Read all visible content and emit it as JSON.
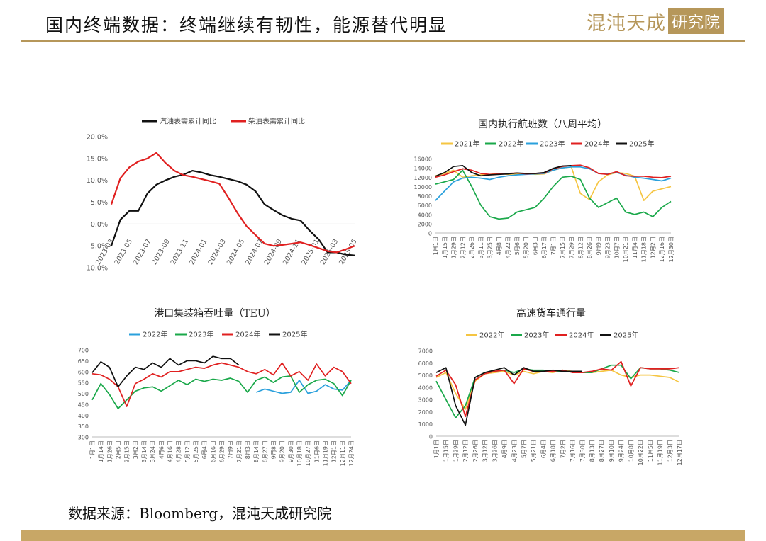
{
  "header": {
    "title": "国内终端数据：终端继续有韧性，能源替代明显",
    "brand_main": "混沌天成",
    "brand_box": "研究院"
  },
  "footer": {
    "source": "数据来源：Bloomberg，混沌天成研究院"
  },
  "colors": {
    "gold": "#b6975a",
    "black": "#111111",
    "red": "#e02020",
    "green": "#1aa84a",
    "blue": "#2aa0dc",
    "yellow": "#f5c542"
  },
  "chart_data": [
    {
      "type": "line",
      "title": "",
      "categories": [
        "2023-03",
        "2023-04",
        "2023-05",
        "2023-06",
        "2023-07",
        "2023-08",
        "2023-09",
        "2023-10",
        "2023-11",
        "2023-12",
        "2024-01",
        "2024-02",
        "2024-03",
        "2024-04",
        "2024-05",
        "2024-06",
        "2024-07",
        "2024-08",
        "2024-09",
        "2024-10",
        "2024-11",
        "2024-12",
        "2025-01",
        "2025-02",
        "2025-03",
        "2025-04",
        "2025-05",
        "2025-06"
      ],
      "x_tick_labels": [
        "2023-03",
        "2023-05",
        "2023-07",
        "2023-09",
        "2023-11",
        "2024-01",
        "2024-03",
        "2024-05",
        "2024-07",
        "2024-09",
        "2024-11",
        "2025-01",
        "2025-03",
        "2025-05"
      ],
      "ylim": [
        -10,
        20
      ],
      "y_ticks": [
        "20.0%",
        "15.0%",
        "10.0%",
        "5.0%",
        "0.0%",
        "-5.0%",
        "-10.0%"
      ],
      "series": [
        {
          "name": "汽油表需累计同比",
          "color": "#111111",
          "values": [
            -5.0,
            1.0,
            3.0,
            3.0,
            7.0,
            9.0,
            10.0,
            10.8,
            11.3,
            12.2,
            11.8,
            11.2,
            10.8,
            10.3,
            9.8,
            9.0,
            7.5,
            4.5,
            3.2,
            2.0,
            1.2,
            0.8,
            -1.5,
            -3.5,
            -6.5,
            -6.5,
            -7.0,
            -7.2
          ]
        },
        {
          "name": "柴油表需累计同比",
          "color": "#e02020",
          "values": [
            4.5,
            10.5,
            13.0,
            14.3,
            15.0,
            16.3,
            14.0,
            12.2,
            11.2,
            10.8,
            10.3,
            9.8,
            9.2,
            6.0,
            2.5,
            -0.5,
            -2.5,
            -4.5,
            -5.0,
            -4.8,
            -4.5,
            -4.2,
            -4.8,
            -5.5,
            -6.2,
            -6.5,
            -5.8,
            -5.0
          ]
        }
      ]
    },
    {
      "type": "line",
      "title": "国内执行航班数（八周平均）",
      "ylim": [
        0,
        16000
      ],
      "y_ticks": [
        "16000",
        "14000",
        "12000",
        "10000",
        "8000",
        "6000",
        "4000",
        "2000",
        "0"
      ],
      "x_tick_labels": [
        "1月1日",
        "1月15日",
        "1月29日",
        "2月12日",
        "2月26日",
        "3月11日",
        "3月25日",
        "4月8日",
        "4月22日",
        "5月6日",
        "5月20日",
        "6月3日",
        "6月17日",
        "7月1日",
        "7月15日",
        "7月29日",
        "8月12日",
        "8月26日",
        "9月9日",
        "9月23日",
        "10月7日",
        "10月21日",
        "11月4日",
        "11月18日",
        "12月2日",
        "12月16日",
        "12月30日"
      ],
      "series": [
        {
          "name": "2021年",
          "color": "#f5c542",
          "values": [
            12300,
            12800,
            13500,
            12000,
            12300,
            12500,
            12600,
            12800,
            12600,
            12700,
            12800,
            12600,
            12700,
            13500,
            14000,
            14200,
            8500,
            7200,
            11000,
            12500,
            13000,
            12800,
            12200,
            7000,
            9000,
            9500,
            10000
          ]
        },
        {
          "name": "2022年",
          "color": "#1aa84a",
          "values": [
            10500,
            11000,
            11500,
            13500,
            10000,
            6000,
            3500,
            3000,
            3200,
            4500,
            5000,
            5500,
            7500,
            10000,
            12000,
            12200,
            11500,
            7500,
            5500,
            6500,
            7500,
            4500,
            4000,
            4500,
            3500,
            5500,
            6800
          ]
        },
        {
          "name": "2023年",
          "color": "#2aa0dc",
          "values": [
            7000,
            9000,
            11000,
            11800,
            12000,
            11800,
            11500,
            12000,
            12300,
            12500,
            12600,
            12700,
            12800,
            13500,
            14000,
            14200,
            14200,
            13800,
            12800,
            12700,
            13000,
            12400,
            12000,
            11800,
            11500,
            11200,
            11800
          ]
        },
        {
          "name": "2024年",
          "color": "#e02020",
          "values": [
            12000,
            12500,
            13200,
            13800,
            13500,
            12800,
            12600,
            12700,
            12800,
            12900,
            12700,
            12800,
            12900,
            13800,
            14300,
            14500,
            14600,
            14000,
            12800,
            12600,
            13200,
            12300,
            12200,
            12200,
            12000,
            11900,
            12200
          ]
        },
        {
          "name": "2025年",
          "color": "#111111",
          "values": [
            12200,
            13000,
            14300,
            14500,
            13000,
            12300,
            12500,
            12600,
            12700,
            12900,
            12800,
            12800,
            13000,
            13900,
            14400,
            14500
          ]
        }
      ]
    },
    {
      "type": "line",
      "title": "港口集装箱吞吐量（TEU）",
      "ylim": [
        300,
        700
      ],
      "y_ticks": [
        "700",
        "650",
        "600",
        "550",
        "500",
        "450",
        "400",
        "350",
        "300"
      ],
      "x_tick_labels": [
        "1月1日",
        "1月14日",
        "1月26日",
        "2月5日",
        "2月15日",
        "3月2日",
        "3月14日",
        "3月24日",
        "4月6日",
        "4月16日",
        "4月28日",
        "5月12日",
        "5月25日",
        "6月4日",
        "6月16日",
        "6月29日",
        "7月9日",
        "7月21日",
        "8月3日",
        "8月14日",
        "8月27日",
        "9月8日",
        "9月20日",
        "9月30日",
        "10月18日",
        "10月27日",
        "11月6日",
        "11月19日",
        "12月1日",
        "12月11日",
        "12月24日"
      ],
      "series": [
        {
          "name": "2022年",
          "color": "#2aa0dc",
          "values": [
            null,
            null,
            null,
            null,
            null,
            null,
            null,
            null,
            null,
            null,
            null,
            null,
            null,
            null,
            null,
            null,
            null,
            null,
            null,
            505,
            520,
            510,
            500,
            505,
            560,
            500,
            510,
            540,
            520,
            515,
            560
          ]
        },
        {
          "name": "2023年",
          "color": "#1aa84a",
          "values": [
            470,
            545,
            495,
            430,
            470,
            510,
            525,
            530,
            510,
            535,
            560,
            540,
            565,
            555,
            565,
            560,
            570,
            555,
            505,
            560,
            575,
            550,
            575,
            580,
            505,
            540,
            560,
            565,
            545,
            490,
            560
          ]
        },
        {
          "name": "2024年",
          "color": "#e02020",
          "values": [
            590,
            585,
            565,
            530,
            440,
            545,
            565,
            590,
            575,
            600,
            600,
            610,
            620,
            615,
            630,
            640,
            630,
            620,
            600,
            590,
            610,
            585,
            640,
            580,
            600,
            560,
            635,
            580,
            620,
            600,
            545
          ]
        },
        {
          "name": "2025年",
          "color": "#111111",
          "values": [
            595,
            645,
            620,
            530,
            580,
            620,
            610,
            640,
            620,
            660,
            630,
            650,
            650,
            640,
            670,
            660,
            660,
            630
          ]
        }
      ]
    },
    {
      "type": "line",
      "title": "高速货车通行量",
      "ylim": [
        0,
        7000
      ],
      "y_ticks": [
        "7000",
        "6000",
        "5000",
        "4000",
        "3000",
        "2000",
        "1000",
        "0"
      ],
      "x_tick_labels": [
        "1月1日",
        "1月15日",
        "1月29日",
        "2月12日",
        "2月26日",
        "3月12日",
        "3月26日",
        "4月9日",
        "4月23日",
        "5月7日",
        "5月21日",
        "6月4日",
        "6月18日",
        "7月2日",
        "7月16日",
        "7月30日",
        "8月13日",
        "8月27日",
        "9月10日",
        "9月24日",
        "10月8日",
        "10月22日",
        "11月5日",
        "11月19日",
        "12月3日",
        "12月17日"
      ],
      "series": [
        {
          "name": "2022年",
          "color": "#f5c542",
          "values": [
            4800,
            5200,
            3500,
            2200,
            4500,
            5100,
            5200,
            5300,
            5000,
            5300,
            5100,
            5300,
            5200,
            5400,
            5300,
            5200,
            5200,
            5300,
            5400,
            5000,
            4800,
            5000,
            5000,
            4900,
            4800,
            4400
          ]
        },
        {
          "name": "2023年",
          "color": "#1aa84a",
          "values": [
            4500,
            3000,
            1500,
            2500,
            4800,
            5200,
            5300,
            5400,
            5200,
            5500,
            5400,
            5400,
            5300,
            5300,
            5300,
            5200,
            5200,
            5500,
            5800,
            5800,
            4700,
            5600,
            5500,
            5500,
            5400,
            5200
          ]
        },
        {
          "name": "2024年",
          "color": "#e02020",
          "values": [
            4900,
            5400,
            4200,
            1600,
            4600,
            5100,
            5300,
            5400,
            4300,
            5500,
            5300,
            5300,
            5300,
            5400,
            5200,
            5200,
            5300,
            5500,
            5400,
            6100,
            4100,
            5600,
            5500,
            5500,
            5500,
            5600
          ]
        },
        {
          "name": "2025年",
          "color": "#111111",
          "values": [
            5200,
            5600,
            2500,
            900,
            4800,
            5200,
            5400,
            5600,
            5000,
            5600,
            5300,
            5300,
            5400,
            5300,
            5300,
            5300
          ]
        }
      ]
    }
  ]
}
